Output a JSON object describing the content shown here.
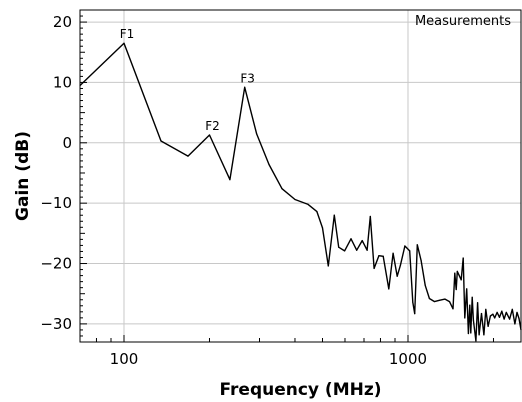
{
  "chart_data": {
    "type": "line",
    "xscale": "log",
    "xlim": [
      70,
      2500
    ],
    "ylim": [
      -33,
      22
    ],
    "grid": true,
    "legend_position": "top-right",
    "xlabel": "Frequency (MHz)",
    "ylabel": "Gain (dB)",
    "x_ticks": [
      100,
      1000
    ],
    "x_tick_labels": [
      "100",
      "1000"
    ],
    "y_ticks": [
      20,
      10,
      0,
      -10,
      -20,
      -30
    ],
    "y_tick_labels": [
      "20",
      "10",
      "0",
      "−10",
      "−20",
      "−30"
    ],
    "series": [
      {
        "name": "Measurements",
        "color": "#000000",
        "x": [
          70,
          100,
          135,
          168,
          200,
          236,
          266,
          293,
          324,
          360,
          400,
          445,
          478,
          500,
          524,
          550,
          570,
          598,
          630,
          660,
          690,
          718,
          737,
          760,
          790,
          818,
          856,
          886,
          916,
          940,
          975,
          1014,
          1040,
          1056,
          1078,
          1112,
          1150,
          1190,
          1240,
          1290,
          1350,
          1400,
          1440,
          1462,
          1478,
          1492,
          1540,
          1565,
          1585,
          1610,
          1632,
          1650,
          1664,
          1683,
          1700,
          1735,
          1758,
          1780,
          1815,
          1850,
          1880,
          1915,
          1950,
          1990,
          2020,
          2060,
          2100,
          2140,
          2180,
          2220,
          2280,
          2330,
          2380,
          2420,
          2460,
          2500
        ],
        "y": [
          9.5,
          16.5,
          0.3,
          -2.2,
          1.3,
          -6.1,
          9.2,
          1.5,
          -3.6,
          -7.6,
          -9.4,
          -10.2,
          -11.4,
          -14.1,
          -20.4,
          -12.0,
          -17.3,
          -17.9,
          -15.9,
          -17.8,
          -16.2,
          -17.8,
          -12.2,
          -20.8,
          -18.7,
          -18.8,
          -24.2,
          -18.3,
          -22.1,
          -20.3,
          -17.1,
          -17.9,
          -26.4,
          -28.3,
          -16.9,
          -19.5,
          -23.6,
          -25.8,
          -26.3,
          -26.1,
          -25.9,
          -26.3,
          -27.5,
          -21.6,
          -24.3,
          -21.3,
          -22.7,
          -19.1,
          -29.0,
          -24.2,
          -31.6,
          -26.9,
          -31.5,
          -25.6,
          -29.4,
          -32.8,
          -26.5,
          -31.8,
          -28.3,
          -31.8,
          -27.6,
          -30.4,
          -28.7,
          -28.4,
          -29.0,
          -28.1,
          -28.9,
          -27.9,
          -29.2,
          -28.1,
          -29.2,
          -27.6,
          -30.0,
          -28.1,
          -29.1,
          -31.0
        ]
      }
    ],
    "annotations": [
      {
        "text": "F1",
        "x": 100,
        "y": 16.5
      },
      {
        "text": "F2",
        "x": 200,
        "y": 1.3
      },
      {
        "text": "F3",
        "x": 266,
        "y": 9.2
      }
    ]
  }
}
